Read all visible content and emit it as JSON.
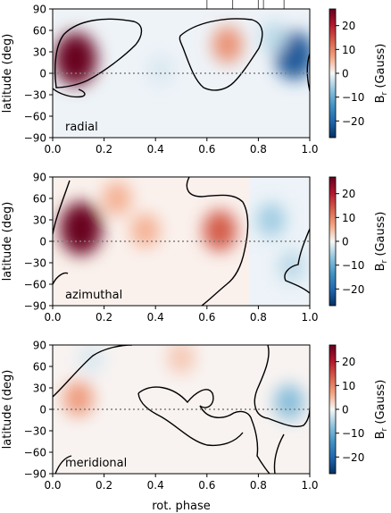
{
  "chart_data": [
    {
      "type": "heatmap",
      "panel_label": "radial",
      "xlabel": "",
      "ylabel": "latitude (deg)",
      "xlim": [
        0,
        1
      ],
      "ylim": [
        -90,
        90
      ],
      "x_ticks": [
        "0.0",
        "0.2",
        "0.4",
        "0.6",
        "0.8",
        "1.0"
      ],
      "y_ticks": [
        "90",
        "60",
        "30",
        "0",
        "−30",
        "−60",
        "−90"
      ],
      "colorbar": {
        "label": "B_r (Gauss)",
        "range": [
          -27,
          27
        ],
        "ticks": [
          "20",
          "10",
          "0",
          "−10",
          "−20"
        ]
      },
      "features": [
        {
          "x": 0.09,
          "lat": 20,
          "value": 27
        },
        {
          "x": 0.68,
          "lat": 40,
          "value": 9
        },
        {
          "x": 0.94,
          "lat": 25,
          "value": -22
        },
        {
          "x": 0.86,
          "lat": 50,
          "value": -4
        },
        {
          "x": 0.42,
          "lat": 5,
          "value": -2
        }
      ],
      "observation_phases": [
        0.6,
        0.7,
        0.8,
        0.82,
        0.9
      ]
    },
    {
      "type": "heatmap",
      "panel_label": "azimuthal",
      "xlabel": "",
      "ylabel": "latitude (deg)",
      "xlim": [
        0,
        1
      ],
      "ylim": [
        -90,
        90
      ],
      "x_ticks": [
        "0.0",
        "0.2",
        "0.4",
        "0.6",
        "0.8",
        "1.0"
      ],
      "y_ticks": [
        "90",
        "60",
        "30",
        "0",
        "−30",
        "−60",
        "−90"
      ],
      "colorbar": {
        "label": "B_r (Gauss)",
        "range": [
          -27,
          27
        ],
        "ticks": [
          "20",
          "10",
          "0",
          "−10",
          "−20"
        ]
      },
      "features": [
        {
          "x": 0.11,
          "lat": 18,
          "value": 27
        },
        {
          "x": 0.36,
          "lat": 15,
          "value": 6
        },
        {
          "x": 0.65,
          "lat": 15,
          "value": 14
        },
        {
          "x": 0.25,
          "lat": 60,
          "value": 6
        },
        {
          "x": 0.85,
          "lat": 30,
          "value": -6
        },
        {
          "x": 0.93,
          "lat": -35,
          "value": -4
        }
      ]
    },
    {
      "type": "heatmap",
      "panel_label": "meridional",
      "xlabel": "rot. phase",
      "ylabel": "latitude (deg)",
      "xlim": [
        0,
        1
      ],
      "ylim": [
        -90,
        90
      ],
      "x_ticks": [
        "0.0",
        "0.2",
        "0.4",
        "0.6",
        "0.8",
        "1.0"
      ],
      "y_ticks": [
        "90",
        "60",
        "30",
        "0",
        "−30",
        "−60",
        "−90"
      ],
      "colorbar": {
        "label": "B_r (Gauss)",
        "range": [
          -27,
          27
        ],
        "ticks": [
          "20",
          "10",
          "0",
          "−10",
          "−20"
        ]
      },
      "features": [
        {
          "x": 0.1,
          "lat": 15,
          "value": 8
        },
        {
          "x": 0.5,
          "lat": 72,
          "value": 4
        },
        {
          "x": 0.92,
          "lat": 10,
          "value": -8
        },
        {
          "x": 0.15,
          "lat": 70,
          "value": -2
        }
      ]
    }
  ],
  "colorbar_label_main": "B",
  "colorbar_label_sub": "r",
  "colorbar_label_rest": " (Gauss)"
}
